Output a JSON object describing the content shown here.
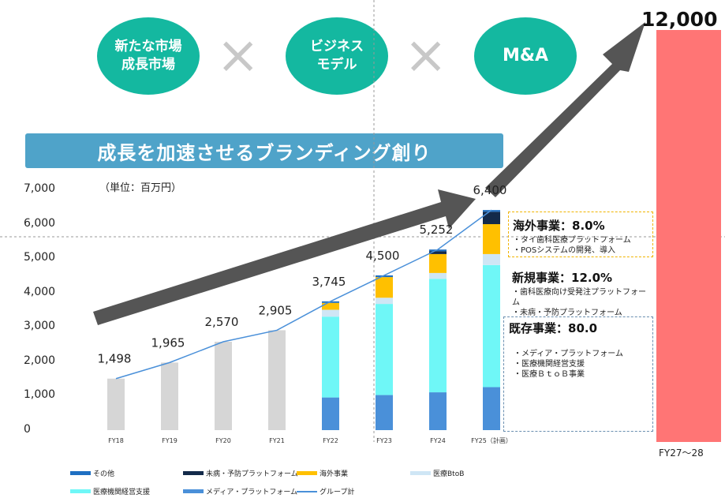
{
  "header": {
    "circles": [
      {
        "label": "新たな市場\n成長市場"
      },
      {
        "label": "ビジネス\nモデル"
      },
      {
        "label": "M&A"
      }
    ],
    "times_symbol": "×",
    "banner": "成長を加速させるブランディング創り"
  },
  "unit_note": "（単位：百万円）",
  "target": {
    "value_label": "12,000",
    "period_label": "FY27～28",
    "value": 12000
  },
  "boxes": {
    "overseas": {
      "title": "海外事業：8.0%",
      "items": [
        "・タイ歯科医療プラットフォーム",
        "・POSシステムの開発、導入"
      ]
    },
    "new": {
      "title": "新規事業：12.0%",
      "items": [
        "・歯科医療向け受発注プラットフォーム",
        "・未病・予防プラットフォーム"
      ]
    },
    "existing": {
      "title": "既存事業：80.0",
      "items": [
        "・メディア・プラットフォーム",
        "・医療機関経営支援",
        "・医療ＢｔｏＢ事業"
      ]
    }
  },
  "legend": [
    {
      "label": "その他",
      "color": "#1f6fc2",
      "kind": "bar"
    },
    {
      "label": "未病・予防プラットフォーム",
      "color": "#132a4a",
      "kind": "bar"
    },
    {
      "label": "海外事業",
      "color": "#ffc000",
      "kind": "bar"
    },
    {
      "label": "医療BtoB",
      "color": "#cfe6f5",
      "kind": "bar"
    },
    {
      "label": "医療機関経営支援",
      "color": "#6ff7f7",
      "kind": "bar"
    },
    {
      "label": "メディア・プラットフォーム",
      "color": "#4a90d9",
      "kind": "bar"
    },
    {
      "label": "グループ計",
      "color": "#4a90d9",
      "kind": "line"
    }
  ],
  "chart_data": {
    "type": "bar",
    "categories": [
      "FY18",
      "FY19",
      "FY20",
      "FY21",
      "FY22",
      "FY23",
      "FY24",
      "FY25（計画）"
    ],
    "totals": [
      1498,
      1965,
      2570,
      2905,
      3745,
      4500,
      5252,
      6400
    ],
    "total_labels": [
      "1,498",
      "1,965",
      "2,570",
      "2,905",
      "3,745",
      "4,500",
      "5,252",
      "6,400"
    ],
    "ylim": [
      0,
      7000
    ],
    "yticks": [
      0,
      1000,
      2000,
      3000,
      4000,
      5000,
      6000,
      7000
    ],
    "ytick_labels": [
      "0",
      "1,000",
      "2,000",
      "3,000",
      "4,000",
      "5,000",
      "6,000",
      "7,000"
    ],
    "gray_color": "#d6d6d6",
    "series": [
      {
        "name": "メディア・プラットフォーム",
        "color": "#4a90d9",
        "values": [
          null,
          null,
          null,
          null,
          950,
          1020,
          1100,
          1250
        ]
      },
      {
        "name": "医療機関経営支援",
        "color": "#6ff7f7",
        "values": [
          null,
          null,
          null,
          null,
          2350,
          2650,
          3300,
          3550
        ]
      },
      {
        "name": "医療BtoB",
        "color": "#cfe6f5",
        "values": [
          null,
          null,
          null,
          null,
          200,
          180,
          170,
          320
        ]
      },
      {
        "name": "海外事業",
        "color": "#ffc000",
        "values": [
          null,
          null,
          null,
          null,
          200,
          600,
          550,
          870
        ]
      },
      {
        "name": "未病・予防プラットフォーム",
        "color": "#132a4a",
        "values": [
          null,
          null,
          null,
          null,
          0,
          0,
          80,
          360
        ]
      },
      {
        "name": "その他",
        "color": "#1f6fc2",
        "values": [
          null,
          null,
          null,
          null,
          45,
          50,
          52,
          50
        ]
      }
    ],
    "line_series": {
      "name": "グループ計",
      "color": "#4a90d9",
      "values": [
        1498,
        1965,
        2570,
        2905,
        3745,
        4500,
        5252,
        6400
      ]
    }
  }
}
